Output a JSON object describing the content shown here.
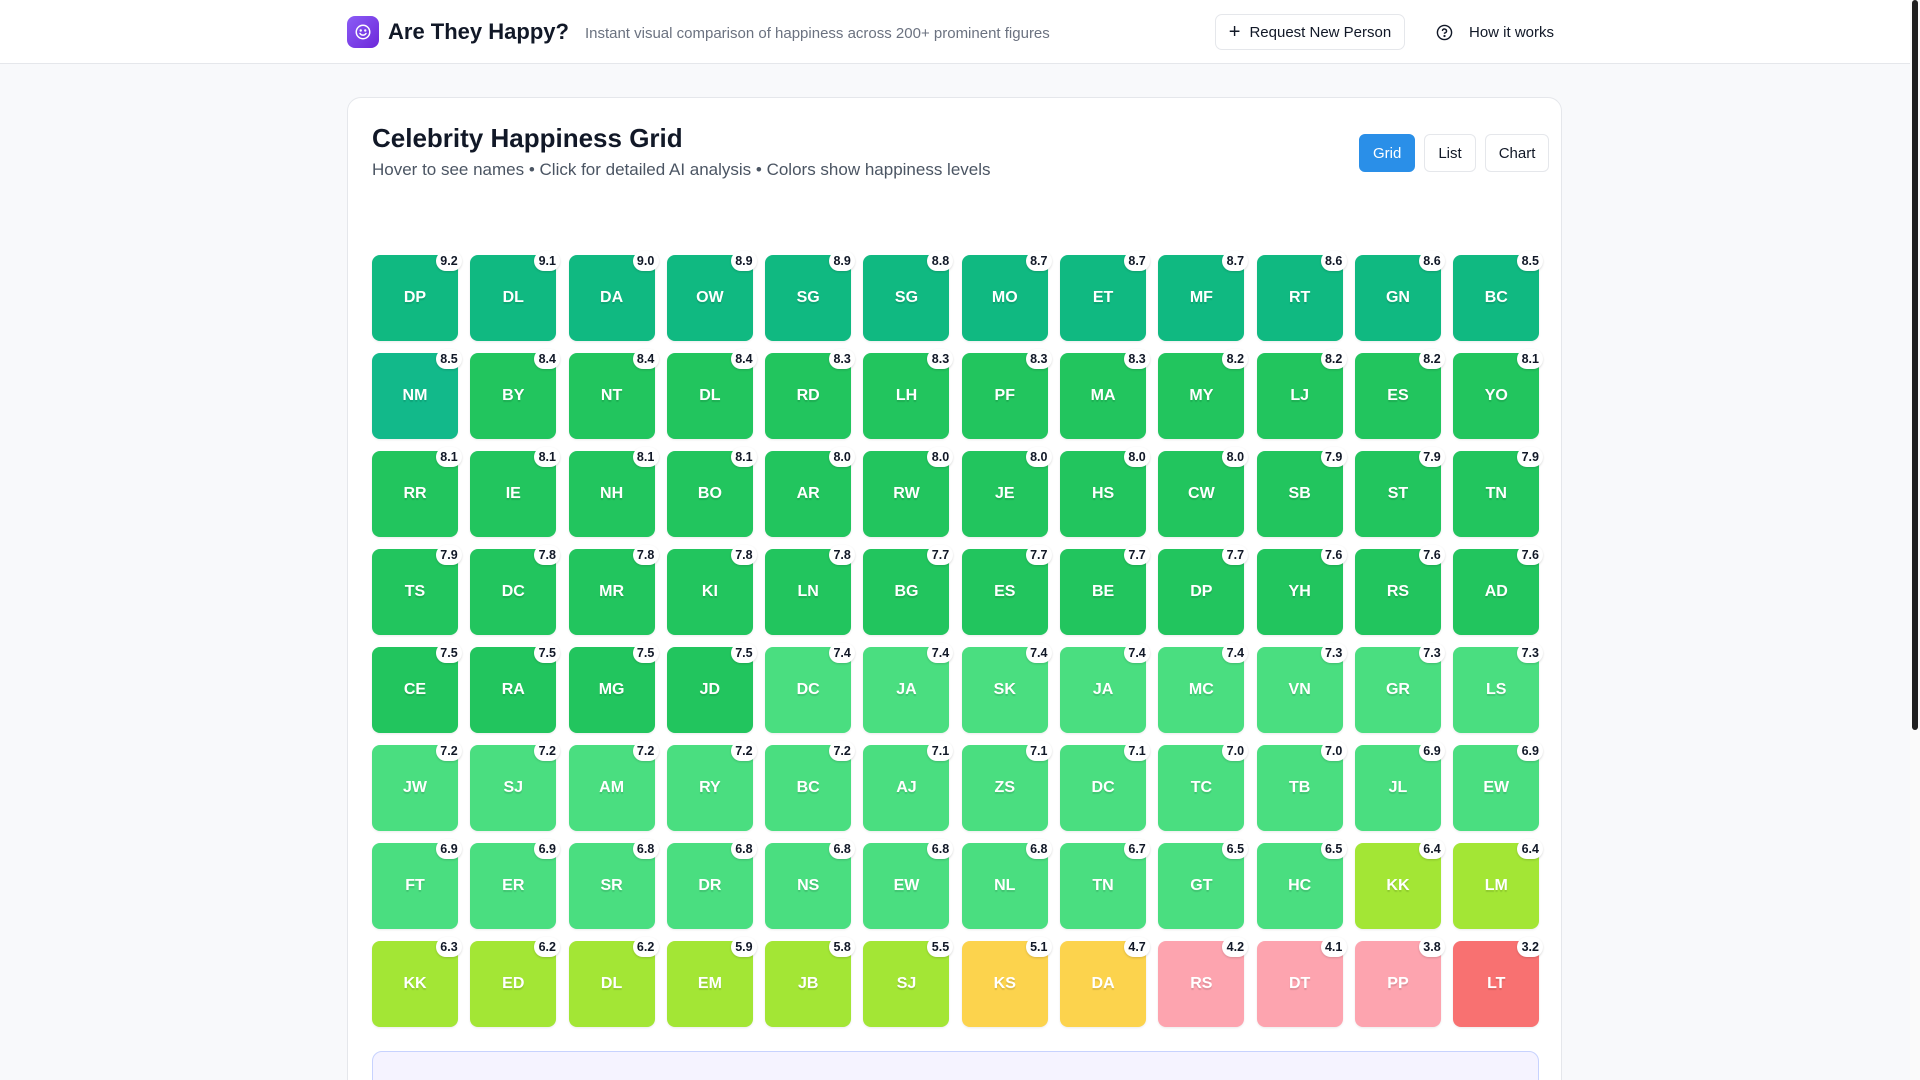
{
  "header": {
    "title": "Are They Happy?",
    "subtitle": "Instant visual comparison of happiness across 200+ prominent figures",
    "request_label": "Request New Person",
    "how_label": "How it works"
  },
  "card": {
    "title": "Celebrity Happiness Grid",
    "subtitle": "Hover to see names • Click for detailed AI analysis • Colors show happiness levels",
    "views": [
      "Grid",
      "List",
      "Chart"
    ],
    "active_view": "Grid"
  },
  "colors": {
    "teal": "#10b981",
    "green": "#22c55e",
    "light_green": "#4ade80",
    "lime": "#a3e635",
    "yellow": "#fcd34d",
    "pink": "#fda4af",
    "red": "#f87171",
    "accent": "#2a8fe8",
    "logo": "#7c3aed"
  },
  "tiles": [
    {
      "initials": "DP",
      "score": "9.2"
    },
    {
      "initials": "DL",
      "score": "9.1"
    },
    {
      "initials": "DA",
      "score": "9.0"
    },
    {
      "initials": "OW",
      "score": "8.9"
    },
    {
      "initials": "SG",
      "score": "8.9"
    },
    {
      "initials": "SG",
      "score": "8.8"
    },
    {
      "initials": "MO",
      "score": "8.7"
    },
    {
      "initials": "ET",
      "score": "8.7"
    },
    {
      "initials": "MF",
      "score": "8.7"
    },
    {
      "initials": "RT",
      "score": "8.6"
    },
    {
      "initials": "GN",
      "score": "8.6"
    },
    {
      "initials": "BC",
      "score": "8.5"
    },
    {
      "initials": "NM",
      "score": "8.5"
    },
    {
      "initials": "BY",
      "score": "8.4"
    },
    {
      "initials": "NT",
      "score": "8.4"
    },
    {
      "initials": "DL",
      "score": "8.4"
    },
    {
      "initials": "RD",
      "score": "8.3"
    },
    {
      "initials": "LH",
      "score": "8.3"
    },
    {
      "initials": "PF",
      "score": "8.3"
    },
    {
      "initials": "MA",
      "score": "8.3"
    },
    {
      "initials": "MY",
      "score": "8.2"
    },
    {
      "initials": "LJ",
      "score": "8.2"
    },
    {
      "initials": "ES",
      "score": "8.2"
    },
    {
      "initials": "YO",
      "score": "8.1"
    },
    {
      "initials": "RR",
      "score": "8.1"
    },
    {
      "initials": "IE",
      "score": "8.1"
    },
    {
      "initials": "NH",
      "score": "8.1"
    },
    {
      "initials": "BO",
      "score": "8.1"
    },
    {
      "initials": "AR",
      "score": "8.0"
    },
    {
      "initials": "RW",
      "score": "8.0"
    },
    {
      "initials": "JE",
      "score": "8.0"
    },
    {
      "initials": "HS",
      "score": "8.0"
    },
    {
      "initials": "CW",
      "score": "8.0"
    },
    {
      "initials": "SB",
      "score": "7.9"
    },
    {
      "initials": "ST",
      "score": "7.9"
    },
    {
      "initials": "TN",
      "score": "7.9"
    },
    {
      "initials": "TS",
      "score": "7.9"
    },
    {
      "initials": "DC",
      "score": "7.8"
    },
    {
      "initials": "MR",
      "score": "7.8"
    },
    {
      "initials": "KI",
      "score": "7.8"
    },
    {
      "initials": "LN",
      "score": "7.8"
    },
    {
      "initials": "BG",
      "score": "7.7"
    },
    {
      "initials": "ES",
      "score": "7.7"
    },
    {
      "initials": "BE",
      "score": "7.7"
    },
    {
      "initials": "DP",
      "score": "7.7"
    },
    {
      "initials": "YH",
      "score": "7.6"
    },
    {
      "initials": "RS",
      "score": "7.6"
    },
    {
      "initials": "AD",
      "score": "7.6"
    },
    {
      "initials": "CE",
      "score": "7.5"
    },
    {
      "initials": "RA",
      "score": "7.5"
    },
    {
      "initials": "MG",
      "score": "7.5"
    },
    {
      "initials": "JD",
      "score": "7.5"
    },
    {
      "initials": "DC",
      "score": "7.4"
    },
    {
      "initials": "JA",
      "score": "7.4"
    },
    {
      "initials": "SK",
      "score": "7.4"
    },
    {
      "initials": "JA",
      "score": "7.4"
    },
    {
      "initials": "MC",
      "score": "7.4"
    },
    {
      "initials": "VN",
      "score": "7.3"
    },
    {
      "initials": "GR",
      "score": "7.3"
    },
    {
      "initials": "LS",
      "score": "7.3"
    },
    {
      "initials": "JW",
      "score": "7.2"
    },
    {
      "initials": "SJ",
      "score": "7.2"
    },
    {
      "initials": "AM",
      "score": "7.2"
    },
    {
      "initials": "RY",
      "score": "7.2"
    },
    {
      "initials": "BC",
      "score": "7.2"
    },
    {
      "initials": "AJ",
      "score": "7.1"
    },
    {
      "initials": "ZS",
      "score": "7.1"
    },
    {
      "initials": "DC",
      "score": "7.1"
    },
    {
      "initials": "TC",
      "score": "7.0"
    },
    {
      "initials": "TB",
      "score": "7.0"
    },
    {
      "initials": "JL",
      "score": "6.9"
    },
    {
      "initials": "EW",
      "score": "6.9"
    },
    {
      "initials": "FT",
      "score": "6.9"
    },
    {
      "initials": "ER",
      "score": "6.9"
    },
    {
      "initials": "SR",
      "score": "6.8"
    },
    {
      "initials": "DR",
      "score": "6.8"
    },
    {
      "initials": "NS",
      "score": "6.8"
    },
    {
      "initials": "EW",
      "score": "6.8"
    },
    {
      "initials": "NL",
      "score": "6.8"
    },
    {
      "initials": "TN",
      "score": "6.7"
    },
    {
      "initials": "GT",
      "score": "6.5"
    },
    {
      "initials": "HC",
      "score": "6.5"
    },
    {
      "initials": "KK",
      "score": "6.4"
    },
    {
      "initials": "LM",
      "score": "6.4"
    },
    {
      "initials": "KK",
      "score": "6.3"
    },
    {
      "initials": "ED",
      "score": "6.2"
    },
    {
      "initials": "DL",
      "score": "6.2"
    },
    {
      "initials": "EM",
      "score": "5.9"
    },
    {
      "initials": "JB",
      "score": "5.8"
    },
    {
      "initials": "SJ",
      "score": "5.5"
    },
    {
      "initials": "KS",
      "score": "5.1"
    },
    {
      "initials": "DA",
      "score": "4.7"
    },
    {
      "initials": "RS",
      "score": "4.2"
    },
    {
      "initials": "DT",
      "score": "4.1"
    },
    {
      "initials": "PP",
      "score": "3.8"
    },
    {
      "initials": "LT",
      "score": "3.2"
    }
  ]
}
